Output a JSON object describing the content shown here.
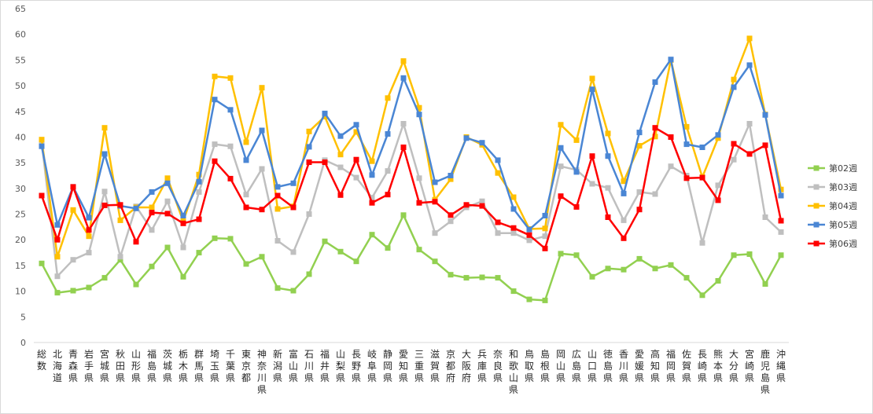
{
  "chart_data": {
    "type": "line",
    "title": "",
    "xlabel": "",
    "ylabel": "",
    "ylim": [
      0,
      65
    ],
    "yticks": [
      0,
      5,
      10,
      15,
      20,
      25,
      30,
      35,
      40,
      45,
      50,
      55,
      60,
      65
    ],
    "grid": false,
    "legend_position": "right",
    "categories": [
      "総数",
      "北海道",
      "青森県",
      "岩手県",
      "宮城県",
      "秋田県",
      "山形県",
      "福島県",
      "茨城県",
      "栃木県",
      "群馬県",
      "埼玉県",
      "千葉県",
      "東京都",
      "神奈川県",
      "新潟県",
      "富山県",
      "石川県",
      "福井県",
      "山梨県",
      "長野県",
      "岐阜県",
      "静岡県",
      "愛知県",
      "三重県",
      "滋賀県",
      "京都府",
      "大阪府",
      "兵庫県",
      "奈良県",
      "和歌山県",
      "鳥取県",
      "島根県",
      "岡山県",
      "広島県",
      "山口県",
      "徳島県",
      "香川県",
      "愛媛県",
      "高知県",
      "福岡県",
      "佐賀県",
      "長崎県",
      "熊本県",
      "大分県",
      "宮崎県",
      "鹿児島県",
      "沖縄県"
    ],
    "series": [
      {
        "name": "第02週",
        "color": "#92d050",
        "marker": "square",
        "values": [
          15.4,
          9.7,
          10.1,
          10.7,
          12.6,
          16.1,
          11.3,
          14.8,
          18.5,
          12.8,
          17.5,
          20.3,
          20.2,
          15.3,
          16.7,
          10.6,
          10.1,
          13.3,
          19.7,
          17.7,
          15.8,
          21.0,
          18.4,
          24.8,
          18.1,
          15.8,
          13.2,
          12.6,
          12.7,
          12.6,
          10.0,
          8.4,
          8.2,
          17.3,
          17.0,
          12.8,
          14.4,
          14.2,
          16.3,
          14.4,
          15.1,
          12.6,
          9.2,
          12.0,
          17.0,
          17.2,
          11.4,
          17.0
        ]
      },
      {
        "name": "第03週",
        "color": "#bfbfbf",
        "marker": "square",
        "values": [
          39.0,
          12.9,
          16.1,
          17.5,
          29.4,
          16.7,
          26.5,
          21.9,
          27.5,
          18.5,
          29.3,
          38.6,
          38.2,
          28.8,
          33.8,
          19.8,
          17.6,
          25.0,
          35.5,
          34.1,
          32.1,
          28.2,
          33.4,
          42.6,
          32.0,
          21.3,
          23.6,
          26.3,
          27.5,
          21.3,
          21.3,
          19.9,
          20.7,
          34.3,
          33.6,
          30.9,
          30.1,
          23.8,
          29.3,
          28.9,
          34.3,
          32.5,
          19.4,
          30.6,
          35.6,
          42.6,
          24.4,
          21.5
        ]
      },
      {
        "name": "第04週",
        "color": "#ffc000",
        "marker": "square",
        "values": [
          39.5,
          16.7,
          25.8,
          20.7,
          41.8,
          23.8,
          26.3,
          26.3,
          32.0,
          23.6,
          32.7,
          51.8,
          51.5,
          39.0,
          49.6,
          26.0,
          26.5,
          41.1,
          44.0,
          36.6,
          41.0,
          35.3,
          47.6,
          54.8,
          45.7,
          27.8,
          31.8,
          40.0,
          38.5,
          33.0,
          28.3,
          22.1,
          22.2,
          42.4,
          39.4,
          51.4,
          40.7,
          31.4,
          38.3,
          40.1,
          55.0,
          42.0,
          32.2,
          39.8,
          51.2,
          59.2,
          44.4,
          29.8
        ]
      },
      {
        "name": "第05週",
        "color": "#4a86d4",
        "marker": "square",
        "values": [
          38.2,
          22.9,
          30.3,
          24.3,
          36.7,
          26.6,
          26.1,
          29.3,
          31.0,
          24.7,
          31.3,
          47.3,
          45.3,
          35.5,
          41.3,
          30.3,
          31.0,
          38.1,
          44.6,
          40.2,
          42.4,
          32.6,
          40.6,
          51.5,
          44.4,
          31.2,
          32.5,
          39.8,
          38.9,
          35.5,
          26.0,
          22.0,
          24.7,
          37.9,
          33.2,
          49.3,
          36.3,
          29.0,
          40.9,
          50.7,
          55.1,
          38.6,
          38.0,
          40.4,
          49.7,
          54.0,
          44.3,
          28.6
        ]
      },
      {
        "name": "第06週",
        "color": "#ff0000",
        "marker": "square",
        "values": [
          28.6,
          20.0,
          30.3,
          21.9,
          26.7,
          26.8,
          19.6,
          25.3,
          25.1,
          23.2,
          24.0,
          35.3,
          31.9,
          26.3,
          25.9,
          28.6,
          26.3,
          35.1,
          35.1,
          28.7,
          35.6,
          27.2,
          28.8,
          38.0,
          27.2,
          27.4,
          24.8,
          26.8,
          26.6,
          23.4,
          22.3,
          20.9,
          18.3,
          28.5,
          26.4,
          36.3,
          24.4,
          20.3,
          25.9,
          41.8,
          40.0,
          32.0,
          32.1,
          27.7,
          38.7,
          36.7,
          38.4,
          23.7
        ]
      }
    ]
  }
}
